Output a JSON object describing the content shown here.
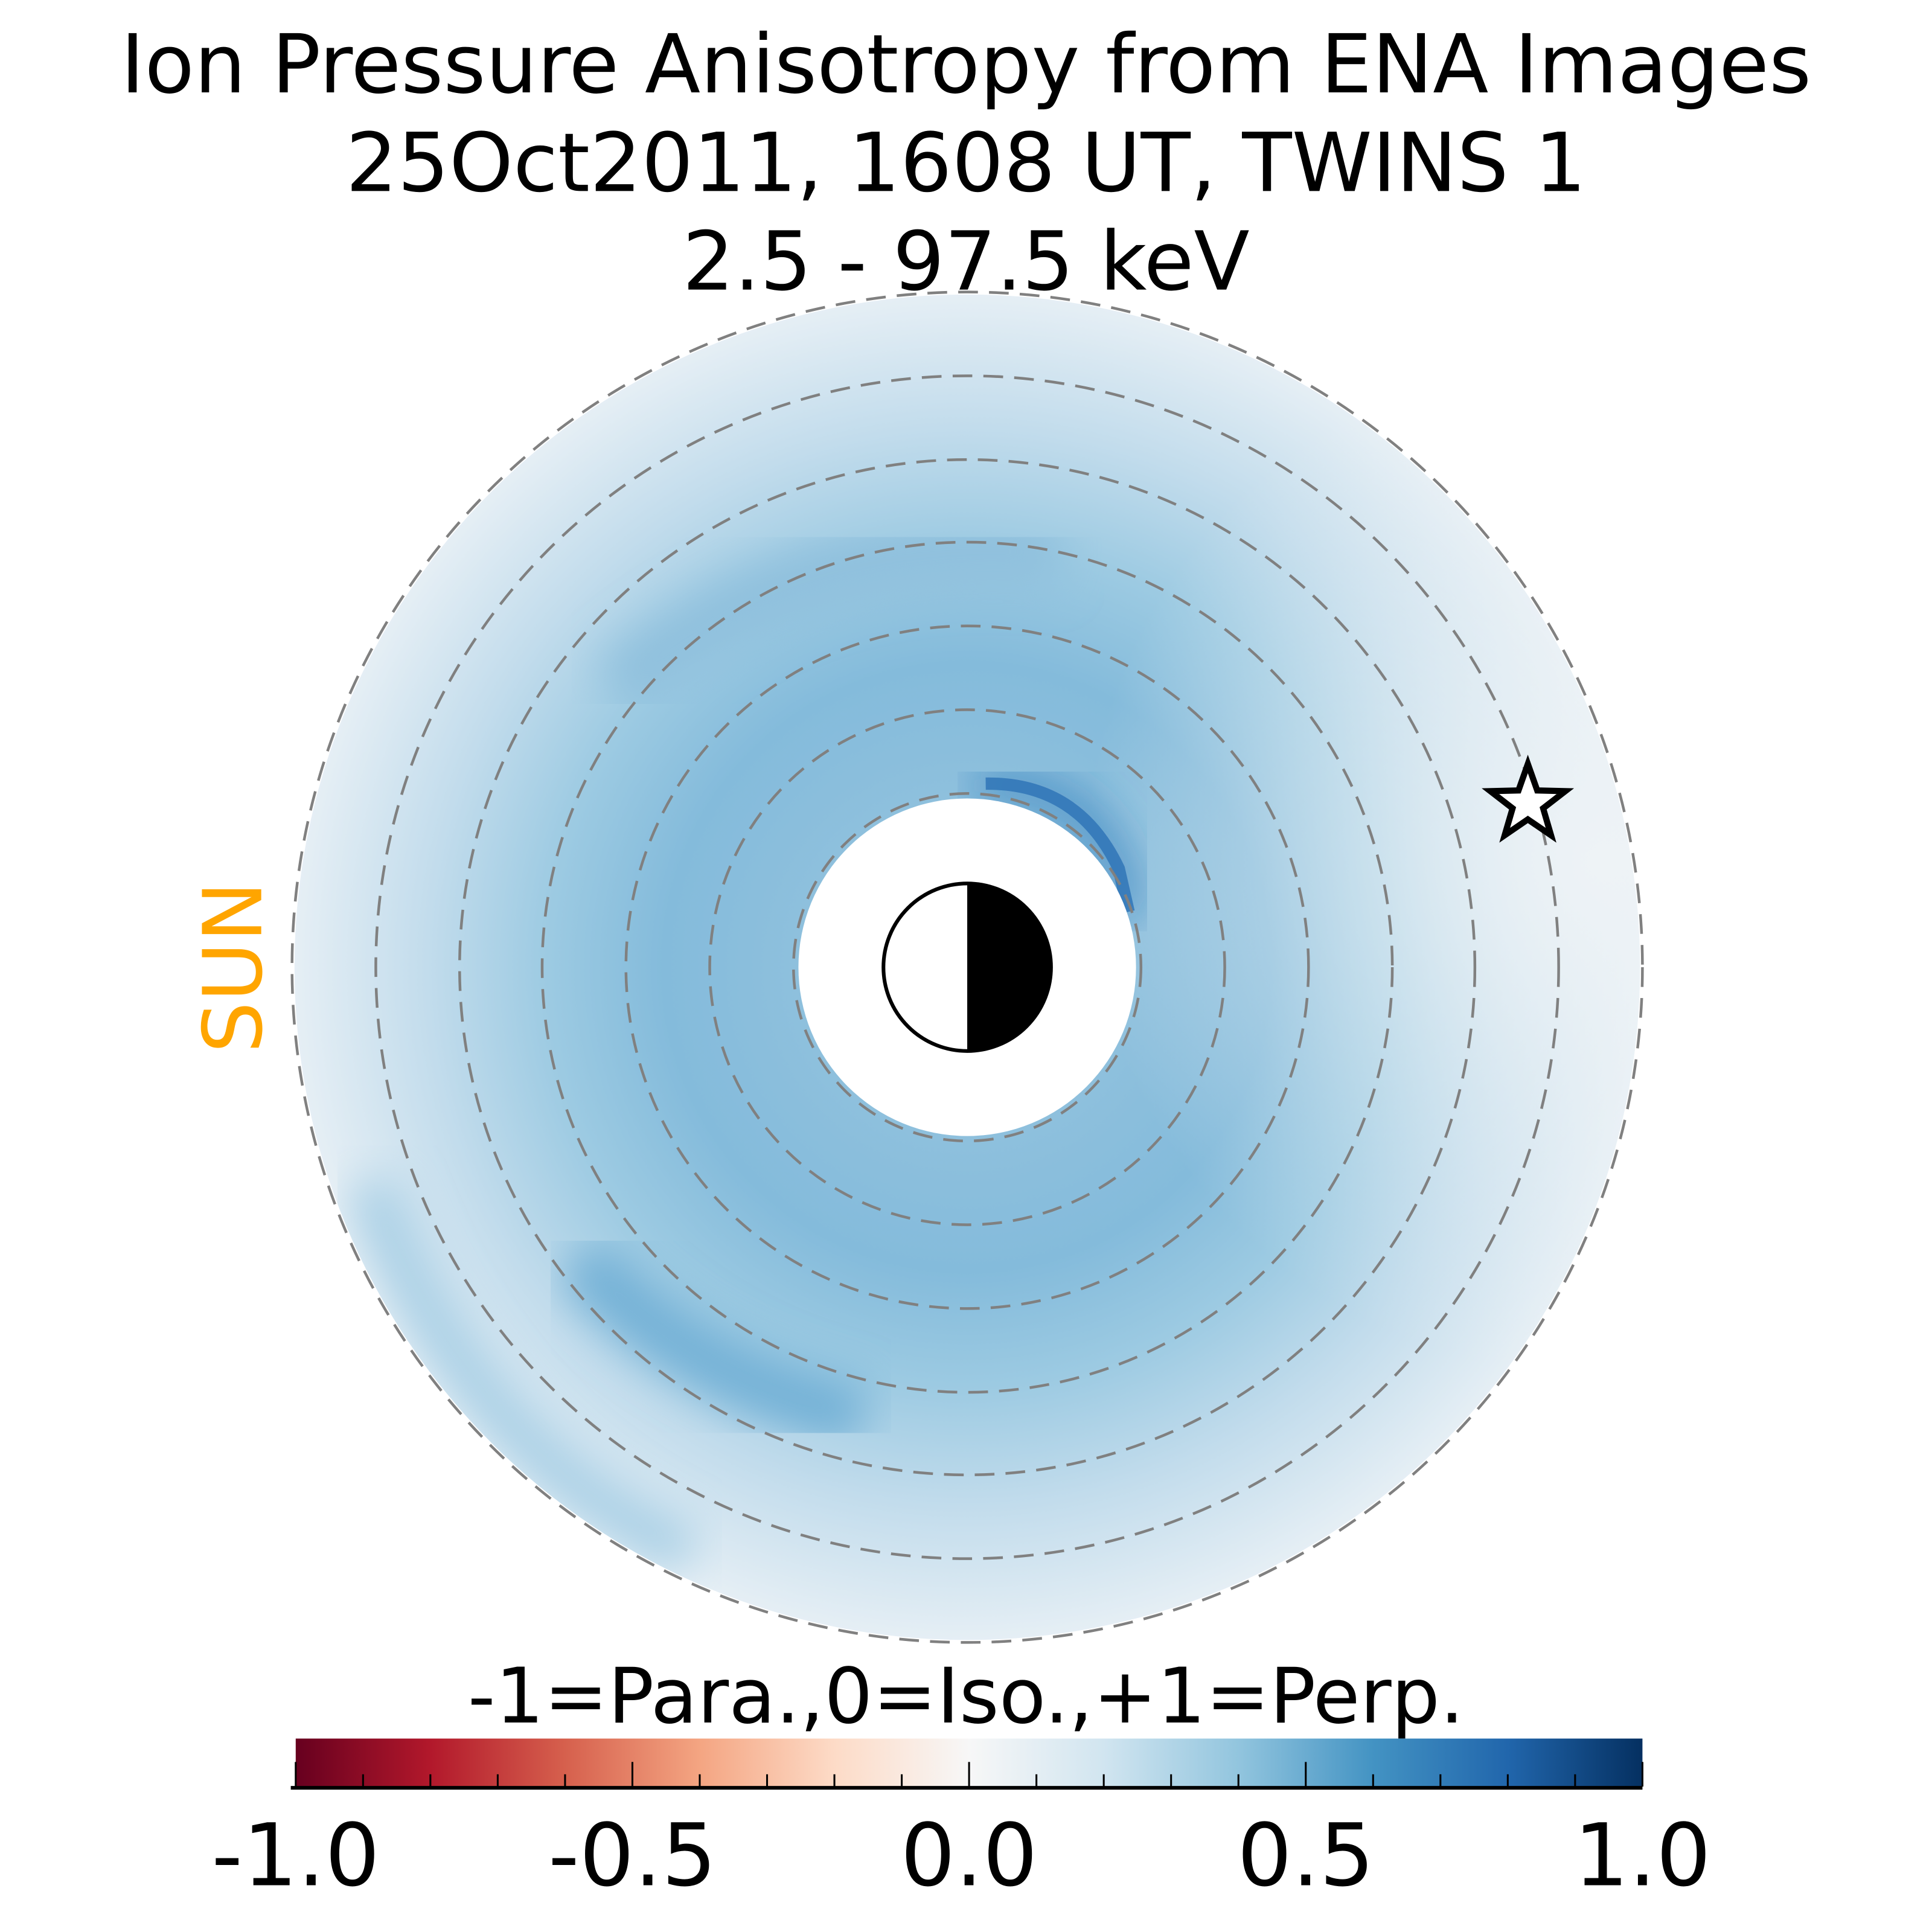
{
  "chart_data": {
    "type": "heatmap",
    "title_lines": [
      "Ion Pressure Anisotropy from  ENA Images",
      "25Oct2011, 1608 UT,  TWINS 1",
      "2.5 - 97.5 keV"
    ],
    "colorbar": {
      "label": "-1=Para.,0=Iso.,+1=Perp.",
      "range": [
        -1.0,
        1.0
      ],
      "colormap": "RdBu",
      "tick_labels": [
        "-1.0",
        "-0.5",
        "0.0",
        "0.5",
        "1.0"
      ],
      "tick_values": [
        -1.0,
        -0.5,
        0.0,
        0.5,
        1.0
      ],
      "minor_tick_step": 0.1
    },
    "map": {
      "description_values": "anisotropy mostly 0.1 to 0.45 (perpendicular); peak ~0.7 near dusk-side inner edge",
      "dashed_ring_count": 7,
      "typical_value_inner": 0.4,
      "typical_value_outer": 0.05,
      "peak_value": 0.7
    },
    "sun_label": "SUN",
    "colors": {
      "sun": "#FFA500",
      "rings": "#808080"
    }
  }
}
